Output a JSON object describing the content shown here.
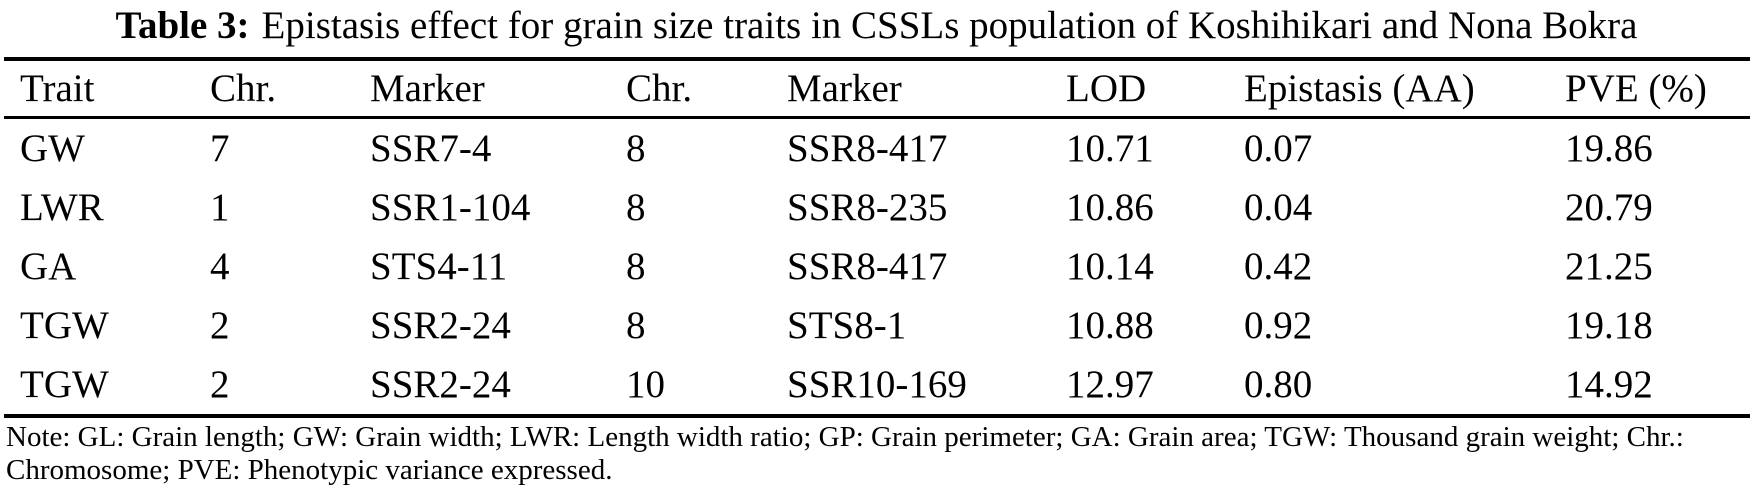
{
  "title": {
    "label": "Table 3:",
    "text": "Epistasis effect for grain size traits in CSSLs population of Koshihikari and Nona Bokra"
  },
  "table": {
    "columns": [
      "Trait",
      "Chr.",
      "Marker",
      "Chr.",
      "Marker",
      "LOD",
      "Epistasis (AA)",
      "PVE (%)"
    ],
    "rows": [
      [
        "GW",
        "7",
        "SSR7-4",
        "8",
        "SSR8-417",
        "10.71",
        "0.07",
        "19.86"
      ],
      [
        "LWR",
        "1",
        "SSR1-104",
        "8",
        "SSR8-235",
        "10.86",
        "0.04",
        "20.79"
      ],
      [
        "GA",
        "4",
        "STS4-11",
        "8",
        "SSR8-417",
        "10.14",
        "0.42",
        "21.25"
      ],
      [
        "TGW",
        "2",
        "SSR2-24",
        "8",
        "STS8-1",
        "10.88",
        "0.92",
        "19.18"
      ],
      [
        "TGW",
        "2",
        "SSR2-24",
        "10",
        "SSR10-169",
        "12.97",
        "0.80",
        "14.92"
      ]
    ]
  },
  "note": "Note: GL: Grain length; GW: Grain width; LWR: Length width ratio; GP: Grain perimeter; GA: Grain area; TGW: Thousand grain weight; Chr.: Chromosome; PVE: Phenotypic variance expressed.",
  "colors": {
    "text": "#000000",
    "background": "#ffffff",
    "rule": "#000000"
  }
}
